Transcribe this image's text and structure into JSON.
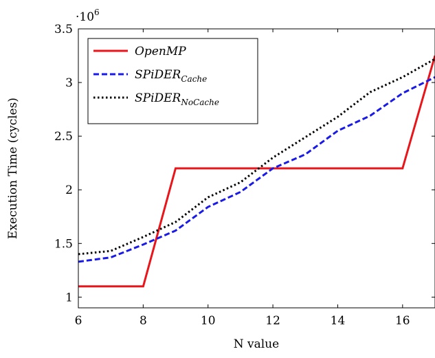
{
  "chart_data": {
    "type": "line",
    "xlabel": "N value",
    "ylabel": "Execution Time (cycles)",
    "y_multiplier": {
      "base": "·10",
      "exponent": "6"
    },
    "xlim": [
      6,
      17
    ],
    "ylim": [
      0.9,
      3.5
    ],
    "x_ticks": [
      6,
      8,
      10,
      12,
      14,
      16
    ],
    "y_ticks": [
      1,
      1.5,
      2,
      2.5,
      3,
      3.5
    ],
    "x_tick_labels": [
      "6",
      "8",
      "10",
      "12",
      "14",
      "16"
    ],
    "y_tick_labels": [
      "1",
      "1.5",
      "2",
      "2.5",
      "3",
      "3.5"
    ],
    "grid": false,
    "legend_position": "top-left",
    "x": [
      6,
      7,
      8,
      9,
      10,
      11,
      12,
      13,
      14,
      15,
      16,
      17
    ],
    "series": [
      {
        "name_main": "OpenMP",
        "name_sub": "",
        "color": "#e8151b",
        "dash": "solid",
        "values": [
          1.1,
          1.1,
          1.1,
          2.2,
          2.2,
          2.2,
          2.2,
          2.2,
          2.2,
          2.2,
          2.2,
          3.25
        ]
      },
      {
        "name_main": "SPiDER",
        "name_sub": "Cache",
        "color": "#1a1ae6",
        "dash": "dashed",
        "values": [
          1.33,
          1.37,
          1.49,
          1.62,
          1.84,
          1.98,
          2.2,
          2.33,
          2.55,
          2.69,
          2.9,
          3.05
        ]
      },
      {
        "name_main": "SPiDER",
        "name_sub": "NoCache",
        "color": "#000000",
        "dash": "dotted",
        "values": [
          1.4,
          1.43,
          1.56,
          1.7,
          1.93,
          2.07,
          2.3,
          2.49,
          2.68,
          2.91,
          3.05,
          3.22
        ]
      }
    ]
  }
}
